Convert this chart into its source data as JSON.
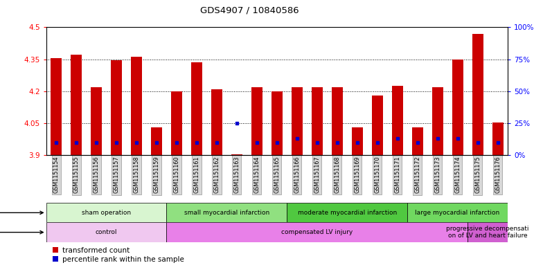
{
  "title": "GDS4907 / 10840586",
  "samples": [
    "GSM1151154",
    "GSM1151155",
    "GSM1151156",
    "GSM1151157",
    "GSM1151158",
    "GSM1151159",
    "GSM1151160",
    "GSM1151161",
    "GSM1151162",
    "GSM1151163",
    "GSM1151164",
    "GSM1151165",
    "GSM1151166",
    "GSM1151167",
    "GSM1151168",
    "GSM1151169",
    "GSM1151170",
    "GSM1151171",
    "GSM1151172",
    "GSM1151173",
    "GSM1151174",
    "GSM1151175",
    "GSM1151176"
  ],
  "red_values": [
    4.355,
    4.37,
    4.22,
    4.345,
    4.36,
    4.03,
    4.2,
    4.335,
    4.21,
    3.905,
    4.22,
    4.2,
    4.22,
    4.22,
    4.22,
    4.03,
    4.18,
    4.225,
    4.03,
    4.22,
    4.35,
    4.47,
    4.055
  ],
  "blue_percentile": [
    10,
    10,
    10,
    10,
    10,
    10,
    10,
    10,
    10,
    25,
    10,
    10,
    13,
    10,
    10,
    10,
    10,
    13,
    10,
    13,
    13,
    10,
    10
  ],
  "ymin": 3.9,
  "ymax": 4.5,
  "yticks_left": [
    3.9,
    4.05,
    4.2,
    4.35,
    4.5
  ],
  "yticks_right": [
    0,
    25,
    50,
    75,
    100
  ],
  "protocol_groups": [
    {
      "label": "sham operation",
      "start": 0,
      "end": 5,
      "color": "#d8f5d0"
    },
    {
      "label": "small myocardial infarction",
      "start": 6,
      "end": 11,
      "color": "#90e080"
    },
    {
      "label": "moderate myocardial infarction",
      "start": 12,
      "end": 17,
      "color": "#50c840"
    },
    {
      "label": "large myocardial infarction",
      "start": 18,
      "end": 22,
      "color": "#70d860"
    }
  ],
  "disease_groups": [
    {
      "label": "control",
      "start": 0,
      "end": 5,
      "color": "#f0c8f0"
    },
    {
      "label": "compensated LV injury",
      "start": 6,
      "end": 20,
      "color": "#e880e8"
    },
    {
      "label": "progressive decompensati\non of LV and heart failure",
      "start": 21,
      "end": 22,
      "color": "#d060d0"
    }
  ],
  "bar_color": "#cc0000",
  "blue_color": "#0000cc",
  "legend_items": [
    "transformed count",
    "percentile rank within the sample"
  ],
  "bar_width": 0.55
}
